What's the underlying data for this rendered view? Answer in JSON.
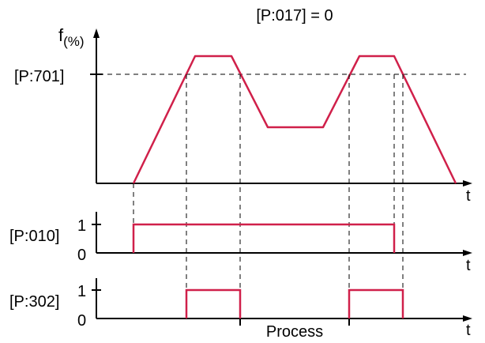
{
  "title": "[P:017] = 0",
  "top_plot": {
    "y_axis_label": "f",
    "y_axis_unit": "(%)",
    "x_axis_label": "t",
    "threshold_label": "[P:701]"
  },
  "middle_plot": {
    "signal_label": "[P:010]",
    "level_high": "1",
    "level_low": "0",
    "x_axis_label": "t"
  },
  "bottom_plot": {
    "signal_label": "[P:302]",
    "level_high": "1",
    "level_low": "0",
    "x_axis_label": "t",
    "interval_label": "Process"
  },
  "colors": {
    "signal": "#d0204a",
    "axis": "#000000",
    "guide": "#000000"
  }
}
